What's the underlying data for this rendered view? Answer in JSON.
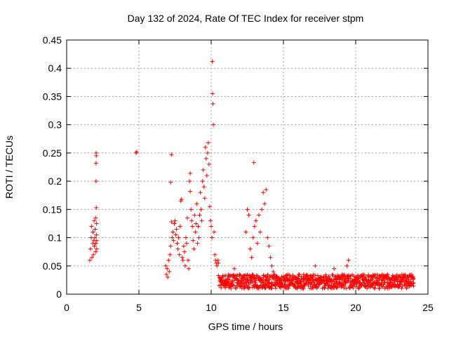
{
  "chart_data": {
    "type": "scatter",
    "title": "Day 132 of 2024, Rate Of TEC Index for receiver stpm",
    "xlabel": "GPS time / hours",
    "ylabel": "ROTI / TECUs",
    "xlim": [
      0,
      25
    ],
    "ylim": [
      0,
      0.45
    ],
    "x_ticks": [
      "0",
      "5",
      "10",
      "15",
      "20",
      "25"
    ],
    "y_ticks": [
      "0",
      "0.05",
      "0.1",
      "0.15",
      "0.2",
      "0.25",
      "0.3",
      "0.35",
      "0.4",
      "0.45"
    ],
    "grid": true,
    "marker": "+",
    "color": "#ff0000",
    "series": [
      {
        "name": "ROTI",
        "points": [
          [
            1.6,
            0.06
          ],
          [
            1.65,
            0.08
          ],
          [
            1.7,
            0.1
          ],
          [
            1.72,
            0.12
          ],
          [
            1.75,
            0.065
          ],
          [
            1.8,
            0.09
          ],
          [
            1.82,
            0.11
          ],
          [
            1.85,
            0.07
          ],
          [
            1.88,
            0.095
          ],
          [
            1.9,
            0.13
          ],
          [
            1.92,
            0.085
          ],
          [
            1.95,
            0.1
          ],
          [
            1.97,
            0.115
          ],
          [
            2.0,
            0.075
          ],
          [
            2.0,
            0.135
          ],
          [
            2.02,
            0.09
          ],
          [
            2.03,
            0.2
          ],
          [
            2.03,
            0.232
          ],
          [
            2.04,
            0.25
          ],
          [
            2.05,
            0.153
          ],
          [
            2.05,
            0.245
          ],
          [
            2.06,
            0.105
          ],
          [
            2.07,
            0.125
          ],
          [
            2.08,
            0.095
          ],
          [
            2.08,
            0.08
          ],
          [
            4.8,
            0.25
          ],
          [
            4.85,
            0.252
          ],
          [
            6.85,
            0.05
          ],
          [
            6.9,
            0.035
          ],
          [
            6.95,
            0.045
          ],
          [
            7.0,
            0.03
          ],
          [
            7.05,
            0.06
          ],
          [
            7.1,
            0.04
          ],
          [
            7.15,
            0.07
          ],
          [
            7.2,
            0.085
          ],
          [
            7.2,
            0.198
          ],
          [
            7.25,
            0.247
          ],
          [
            7.25,
            0.128
          ],
          [
            7.3,
            0.1
          ],
          [
            7.35,
            0.11
          ],
          [
            7.4,
            0.095
          ],
          [
            7.45,
            0.125
          ],
          [
            7.5,
            0.13
          ],
          [
            7.55,
            0.105
          ],
          [
            7.6,
            0.115
          ],
          [
            7.65,
            0.09
          ],
          [
            7.7,
            0.08
          ],
          [
            7.75,
            0.1
          ],
          [
            7.8,
            0.07
          ],
          [
            7.85,
            0.12
          ],
          [
            7.9,
            0.165
          ],
          [
            7.95,
            0.168
          ],
          [
            8.0,
            0.065
          ],
          [
            8.05,
            0.06
          ],
          [
            8.1,
            0.085
          ],
          [
            8.15,
            0.075
          ],
          [
            8.2,
            0.05
          ],
          [
            8.25,
            0.1
          ],
          [
            8.3,
            0.09
          ],
          [
            8.35,
            0.135
          ],
          [
            8.4,
            0.06
          ],
          [
            8.45,
            0.045
          ],
          [
            8.5,
            0.2
          ],
          [
            8.55,
            0.214
          ],
          [
            8.55,
            0.182
          ],
          [
            8.6,
            0.15
          ],
          [
            8.65,
            0.13
          ],
          [
            8.7,
            0.12
          ],
          [
            8.75,
            0.095
          ],
          [
            8.8,
            0.08
          ],
          [
            8.85,
            0.14
          ],
          [
            8.9,
            0.11
          ],
          [
            8.95,
            0.125
          ],
          [
            9.0,
            0.16
          ],
          [
            9.05,
            0.09
          ],
          [
            9.1,
            0.12
          ],
          [
            9.15,
            0.1
          ],
          [
            9.2,
            0.14
          ],
          [
            9.25,
            0.18
          ],
          [
            9.3,
            0.15
          ],
          [
            9.35,
            0.13
          ],
          [
            9.4,
            0.2
          ],
          [
            9.45,
            0.22
          ],
          [
            9.5,
            0.19
          ],
          [
            9.55,
            0.17
          ],
          [
            9.6,
            0.26
          ],
          [
            9.65,
            0.24
          ],
          [
            9.7,
            0.21
          ],
          [
            9.75,
            0.25
          ],
          [
            9.8,
            0.268
          ],
          [
            9.85,
            0.23
          ],
          [
            9.9,
            0.155
          ],
          [
            9.95,
            0.13
          ],
          [
            10.0,
            0.12
          ],
          [
            10.05,
            0.1
          ],
          [
            10.08,
            0.412
          ],
          [
            10.1,
            0.355
          ],
          [
            10.12,
            0.337
          ],
          [
            10.15,
            0.3
          ],
          [
            10.2,
            0.11
          ],
          [
            10.25,
            0.07
          ],
          [
            10.3,
            0.06
          ],
          [
            10.35,
            0.055
          ],
          [
            10.4,
            0.05
          ],
          [
            10.45,
            0.06
          ],
          [
            10.5,
            0.055
          ],
          [
            10.6,
            0.03
          ],
          [
            10.8,
            0.02
          ],
          [
            11.0,
            0.025
          ],
          [
            11.2,
            0.035
          ],
          [
            11.4,
            0.02
          ],
          [
            11.6,
            0.045
          ],
          [
            11.8,
            0.015
          ],
          [
            12.0,
            0.02
          ],
          [
            12.2,
            0.03
          ],
          [
            12.3,
            0.018
          ],
          [
            12.4,
            0.11
          ],
          [
            12.5,
            0.15
          ],
          [
            12.6,
            0.14
          ],
          [
            12.7,
            0.08
          ],
          [
            12.8,
            0.065
          ],
          [
            12.9,
            0.1
          ],
          [
            12.95,
            0.233
          ],
          [
            13.0,
            0.12
          ],
          [
            13.1,
            0.13
          ],
          [
            13.2,
            0.09
          ],
          [
            13.3,
            0.14
          ],
          [
            13.4,
            0.11
          ],
          [
            13.5,
            0.15
          ],
          [
            13.6,
            0.18
          ],
          [
            13.7,
            0.16
          ],
          [
            13.8,
            0.185
          ],
          [
            13.9,
            0.1
          ],
          [
            14.0,
            0.085
          ],
          [
            14.1,
            0.065
          ],
          [
            14.2,
            0.05
          ],
          [
            14.3,
            0.04
          ],
          [
            14.4,
            0.035
          ],
          [
            14.5,
            0.03
          ],
          [
            14.7,
            0.02
          ],
          [
            15.0,
            0.025
          ],
          [
            15.3,
            0.015
          ],
          [
            15.6,
            0.02
          ],
          [
            15.8,
            0.03
          ],
          [
            16.0,
            0.018
          ],
          [
            16.2,
            0.02
          ],
          [
            16.4,
            0.035
          ],
          [
            16.6,
            0.025
          ],
          [
            16.8,
            0.02
          ],
          [
            17.0,
            0.03
          ],
          [
            17.2,
            0.05
          ],
          [
            17.4,
            0.025
          ],
          [
            17.6,
            0.02
          ],
          [
            17.8,
            0.03
          ],
          [
            18.0,
            0.018
          ],
          [
            18.2,
            0.025
          ],
          [
            18.5,
            0.045
          ],
          [
            18.7,
            0.02
          ],
          [
            19.0,
            0.03
          ],
          [
            19.2,
            0.025
          ],
          [
            19.4,
            0.05
          ],
          [
            19.5,
            0.06
          ],
          [
            19.7,
            0.02
          ],
          [
            20.0,
            0.025
          ],
          [
            20.3,
            0.03
          ],
          [
            20.6,
            0.02
          ],
          [
            20.9,
            0.025
          ],
          [
            21.2,
            0.03
          ],
          [
            21.5,
            0.02
          ],
          [
            21.8,
            0.025
          ],
          [
            22.1,
            0.03
          ],
          [
            22.4,
            0.02
          ],
          [
            22.7,
            0.025
          ],
          [
            23.0,
            0.03
          ],
          [
            23.2,
            0.035
          ],
          [
            23.5,
            0.025
          ],
          [
            23.8,
            0.03
          ],
          [
            24.0,
            0.02
          ]
        ]
      }
    ],
    "bands": [
      {
        "x0": 10.5,
        "x1": 24.0,
        "ymin": 0.01,
        "ymax": 0.035,
        "density": 6
      }
    ]
  }
}
